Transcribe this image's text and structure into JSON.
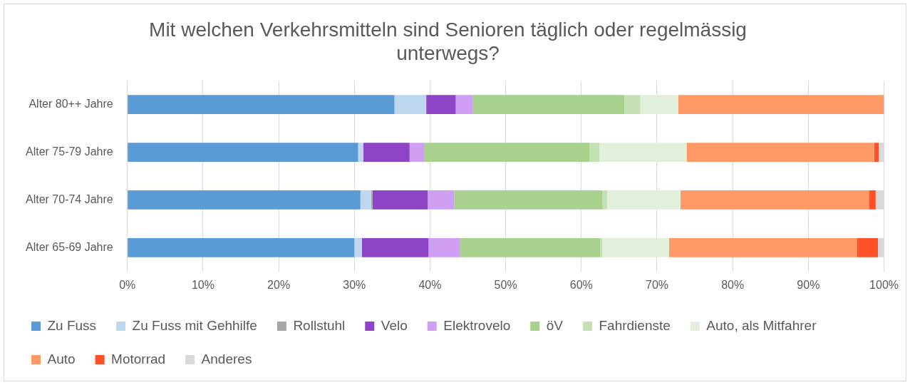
{
  "chart_data": {
    "type": "bar",
    "orientation": "horizontal",
    "stacked": true,
    "title": "Mit welchen Verkehrsmitteln sind Senioren täglich oder regelmässig unterwegs?",
    "categories": [
      "Alter 80++ Jahre",
      "Alter 75-79 Jahre",
      "Alter 70-74 Jahre",
      "Alter 65-69 Jahre"
    ],
    "series": [
      {
        "name": "Zu Fuss",
        "color": "#5b9bd5",
        "values": [
          35.3,
          30.5,
          30.8,
          30.0
        ]
      },
      {
        "name": "Zu Fuss mit Gehhilfe",
        "color": "#bdd7ee",
        "values": [
          4.2,
          0.7,
          1.4,
          1.0
        ]
      },
      {
        "name": "Rollstuhl",
        "color": "#a5a5a5",
        "values": [
          0,
          0,
          0.2,
          0
        ]
      },
      {
        "name": "Velo",
        "color": "#8e44c6",
        "values": [
          3.9,
          6.1,
          7.3,
          8.8
        ]
      },
      {
        "name": "Elektrovelo",
        "color": "#cf9ff3",
        "values": [
          2.2,
          1.9,
          3.5,
          4.2
        ]
      },
      {
        "name": "öV",
        "color": "#a9d18e",
        "values": [
          20.1,
          21.9,
          19.6,
          18.5
        ]
      },
      {
        "name": "Fahrdienste",
        "color": "#c5e0b4",
        "values": [
          2.1,
          1.3,
          0.6,
          0.3
        ]
      },
      {
        "name": "Auto, als Mitfahrer",
        "color": "#e2efda",
        "values": [
          5.0,
          11.5,
          9.7,
          8.8
        ]
      },
      {
        "name": "Auto",
        "color": "#ff9966",
        "values": [
          27.2,
          24.8,
          24.9,
          24.8
        ]
      },
      {
        "name": "Motorrad",
        "color": "#ff5028",
        "values": [
          0,
          0.6,
          0.9,
          2.8
        ]
      },
      {
        "name": "Anderes",
        "color": "#d9d9d9",
        "values": [
          0,
          0.7,
          1.1,
          0.8
        ]
      }
    ],
    "xlim": [
      0,
      100
    ],
    "xticks": [
      {
        "value": 0,
        "label": "0%"
      },
      {
        "value": 10,
        "label": "10%"
      },
      {
        "value": 20,
        "label": "20%"
      },
      {
        "value": 30,
        "label": "30%"
      },
      {
        "value": 40,
        "label": "40%"
      },
      {
        "value": 50,
        "label": "50%"
      },
      {
        "value": 60,
        "label": "60%"
      },
      {
        "value": 70,
        "label": "70%"
      },
      {
        "value": 80,
        "label": "80%"
      },
      {
        "value": 90,
        "label": "90%"
      },
      {
        "value": 100,
        "label": "100%"
      }
    ],
    "grid": "x",
    "legend": "bottom"
  }
}
